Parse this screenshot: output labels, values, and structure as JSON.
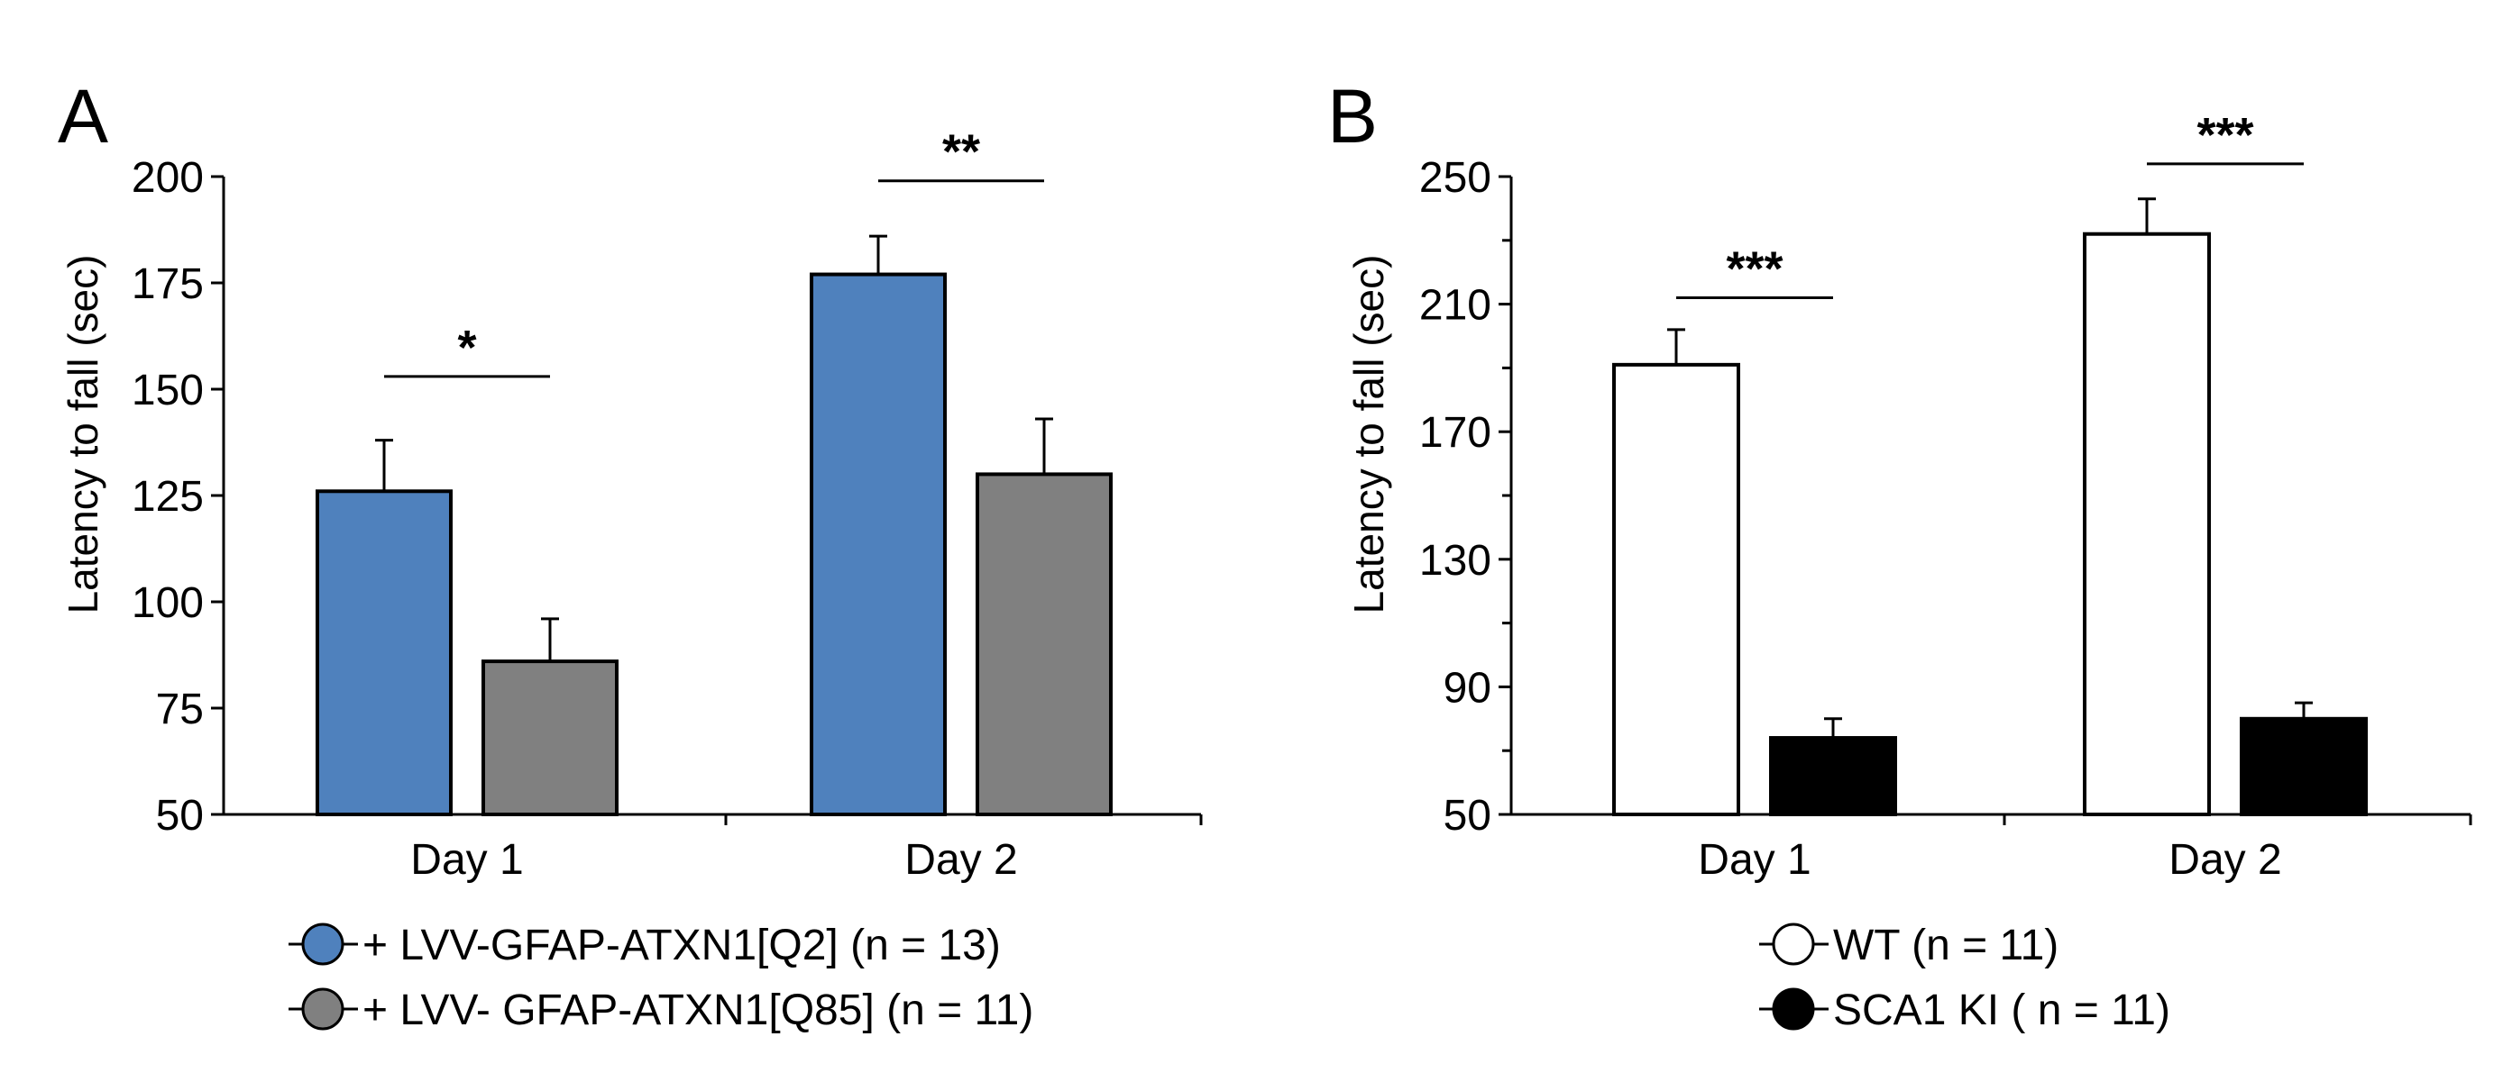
{
  "colors": {
    "q2_blue": "#4f81bd",
    "q85_gray": "#808080",
    "wt_white": "#ffffff",
    "ki_black": "#000000",
    "axis": "#000000"
  },
  "chart_data": [
    {
      "panel": "A",
      "type": "bar",
      "ylabel": "Latency to fall (sec)",
      "xlabel": "",
      "ylim": [
        50,
        200
      ],
      "yticks": [
        "200",
        "175",
        "150",
        "125",
        "100",
        "75",
        "50"
      ],
      "ytick_values": [
        200,
        175,
        150,
        125,
        100,
        75,
        50
      ],
      "categories": [
        "Day 1",
        "Day 2"
      ],
      "series": [
        {
          "name": "+ LVV-GFAP-ATXN1[Q2] (n = 13)",
          "color": "#4f81bd",
          "values": [
            126,
            177
          ],
          "errors": [
            12,
            9
          ]
        },
        {
          "name": "+ LVV- GFAP-ATXN1[Q85] (n = 11)",
          "color": "#808080",
          "values": [
            86,
            130
          ],
          "errors": [
            10,
            13
          ]
        }
      ],
      "significance": [
        "*",
        "**"
      ],
      "sig_levels": [
        153,
        199
      ],
      "legend": {
        "placement": "bottom"
      }
    },
    {
      "panel": "B",
      "type": "bar",
      "ylabel": "Latency to fall (sec)",
      "xlabel": "",
      "ylim": [
        50,
        250
      ],
      "yticks": [
        "250",
        "210",
        "170",
        "130",
        "90",
        "50"
      ],
      "ytick_values": [
        250,
        210,
        170,
        130,
        90,
        50
      ],
      "minor_ticks": [
        230,
        190,
        150,
        110,
        70
      ],
      "categories": [
        "Day 1",
        "Day 2"
      ],
      "series": [
        {
          "name": "WT (n = 11)",
          "color": "#ffffff",
          "values": [
            191,
            232
          ],
          "errors": [
            11,
            11
          ]
        },
        {
          "name": "SCA1 KI ( n = 11)",
          "color": "#000000",
          "values": [
            74,
            80
          ],
          "errors": [
            6,
            5
          ]
        }
      ],
      "significance": [
        "***",
        "***"
      ],
      "sig_levels": [
        212,
        254
      ],
      "legend": {
        "placement": "bottom"
      }
    }
  ]
}
